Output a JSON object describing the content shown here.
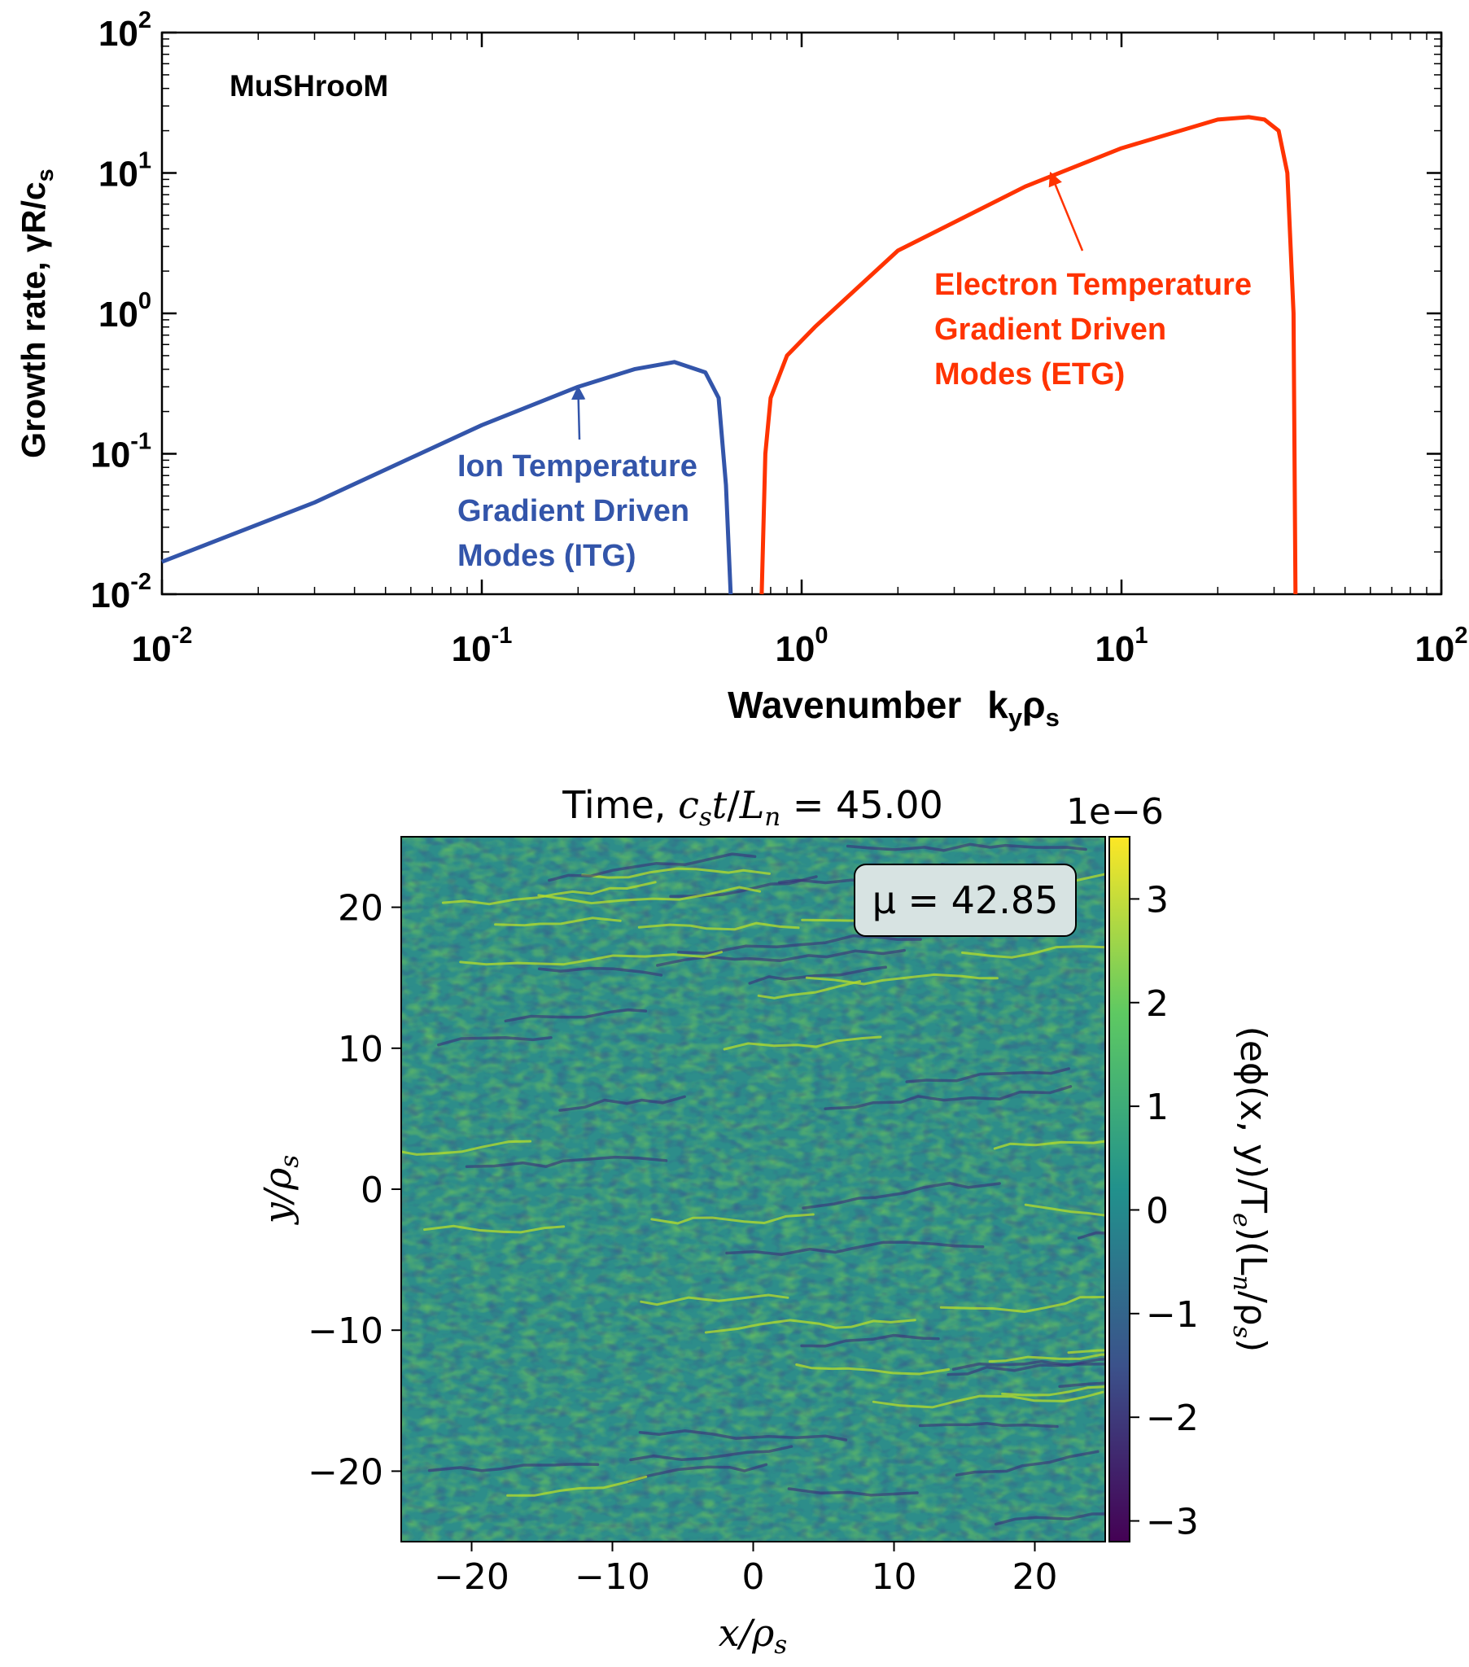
{
  "chart_data": [
    {
      "type": "line",
      "title": "",
      "annotation_label": "MuSHrooM",
      "xlabel": "Wavenumber",
      "xlabel_symbol": "k",
      "xlabel_sub1": "y",
      "xlabel_rho": "ρ",
      "xlabel_sub2": "s",
      "ylabel": "Growth rate, γR/c",
      "ylabel_sub": "s",
      "xscale": "log",
      "yscale": "log",
      "xlim": [
        0.01,
        100
      ],
      "ylim": [
        0.01,
        100
      ],
      "xticks": [
        {
          "value": 0.01,
          "base": "10",
          "exp": "-2"
        },
        {
          "value": 0.1,
          "base": "10",
          "exp": "-1"
        },
        {
          "value": 1,
          "base": "10",
          "exp": "0"
        },
        {
          "value": 10,
          "base": "10",
          "exp": "1"
        },
        {
          "value": 100,
          "base": "10",
          "exp": "2"
        }
      ],
      "yticks": [
        {
          "value": 0.01,
          "base": "10",
          "exp": "-2"
        },
        {
          "value": 0.1,
          "base": "10",
          "exp": "-1"
        },
        {
          "value": 1,
          "base": "10",
          "exp": "0"
        },
        {
          "value": 10,
          "base": "10",
          "exp": "1"
        },
        {
          "value": 100,
          "base": "10",
          "exp": "2"
        }
      ],
      "grid": false,
      "series": [
        {
          "color": "#3355aa",
          "x": [
            0.01,
            0.03,
            0.1,
            0.2,
            0.3,
            0.4,
            0.5,
            0.55,
            0.58,
            0.6
          ],
          "y": [
            0.017,
            0.045,
            0.16,
            0.3,
            0.4,
            0.45,
            0.38,
            0.25,
            0.06,
            0.01
          ]
        },
        {
          "color": "#ff3300",
          "x": [
            0.75,
            0.77,
            0.8,
            0.9,
            1.1,
            2,
            5,
            10,
            20,
            25,
            28,
            31,
            33,
            34.5,
            35
          ],
          "y": [
            0.01,
            0.1,
            0.25,
            0.5,
            0.8,
            2.8,
            8,
            15,
            24,
            25,
            24,
            20,
            10,
            1,
            0.01
          ]
        }
      ],
      "annotations": [
        {
          "lines": [
            "Ion Temperature",
            "Gradient Driven",
            "Modes (ITG)"
          ],
          "color": "#3355aa",
          "arrow_to": [
            0.2,
            0.3
          ]
        },
        {
          "lines": [
            "Electron Temperature",
            "Gradient Driven",
            "Modes (ETG)"
          ],
          "color": "#ff3300",
          "arrow_to": [
            6,
            10
          ]
        }
      ]
    },
    {
      "type": "heatmap",
      "title_prefix": "Time, ",
      "title_c": "c",
      "title_c_sub": "s",
      "title_t": "t",
      "title_slash": "/",
      "title_L": "L",
      "title_L_sub": "n",
      "title_value": " = 45.00",
      "colorbar_multiplier": "1e−6",
      "annotation": "μ = 42.85",
      "xlabel": "x/ρ",
      "xlabel_sub": "s",
      "ylabel": "y/ρ",
      "ylabel_sub": "s",
      "colorbar_label": "(eϕ(x, y)/T",
      "colorbar_label_sub1": "e",
      "colorbar_label_mid": ")(L",
      "colorbar_label_sub2": "n",
      "colorbar_label_end": "/ρ",
      "colorbar_label_sub3": "s",
      "colorbar_label_close": ")",
      "xlim": [
        -25,
        25
      ],
      "ylim": [
        -25,
        25
      ],
      "xticks": [
        "−20",
        "−10",
        "0",
        "10",
        "20"
      ],
      "xtick_values": [
        -20,
        -10,
        0,
        10,
        20
      ],
      "yticks": [
        "20",
        "10",
        "0",
        "−10",
        "−20"
      ],
      "ytick_values": [
        20,
        10,
        0,
        -10,
        -20
      ],
      "colorbar_range": [
        -3.2,
        3.6
      ],
      "colorbar_ticks": [
        "3",
        "2",
        "1",
        "0",
        "−1",
        "−2",
        "−3"
      ],
      "colorbar_tick_values": [
        3,
        2,
        1,
        0,
        -1,
        -2,
        -3
      ],
      "colormap": [
        "#440154",
        "#3b528b",
        "#21918c",
        "#5ec962",
        "#fde725"
      ]
    }
  ]
}
